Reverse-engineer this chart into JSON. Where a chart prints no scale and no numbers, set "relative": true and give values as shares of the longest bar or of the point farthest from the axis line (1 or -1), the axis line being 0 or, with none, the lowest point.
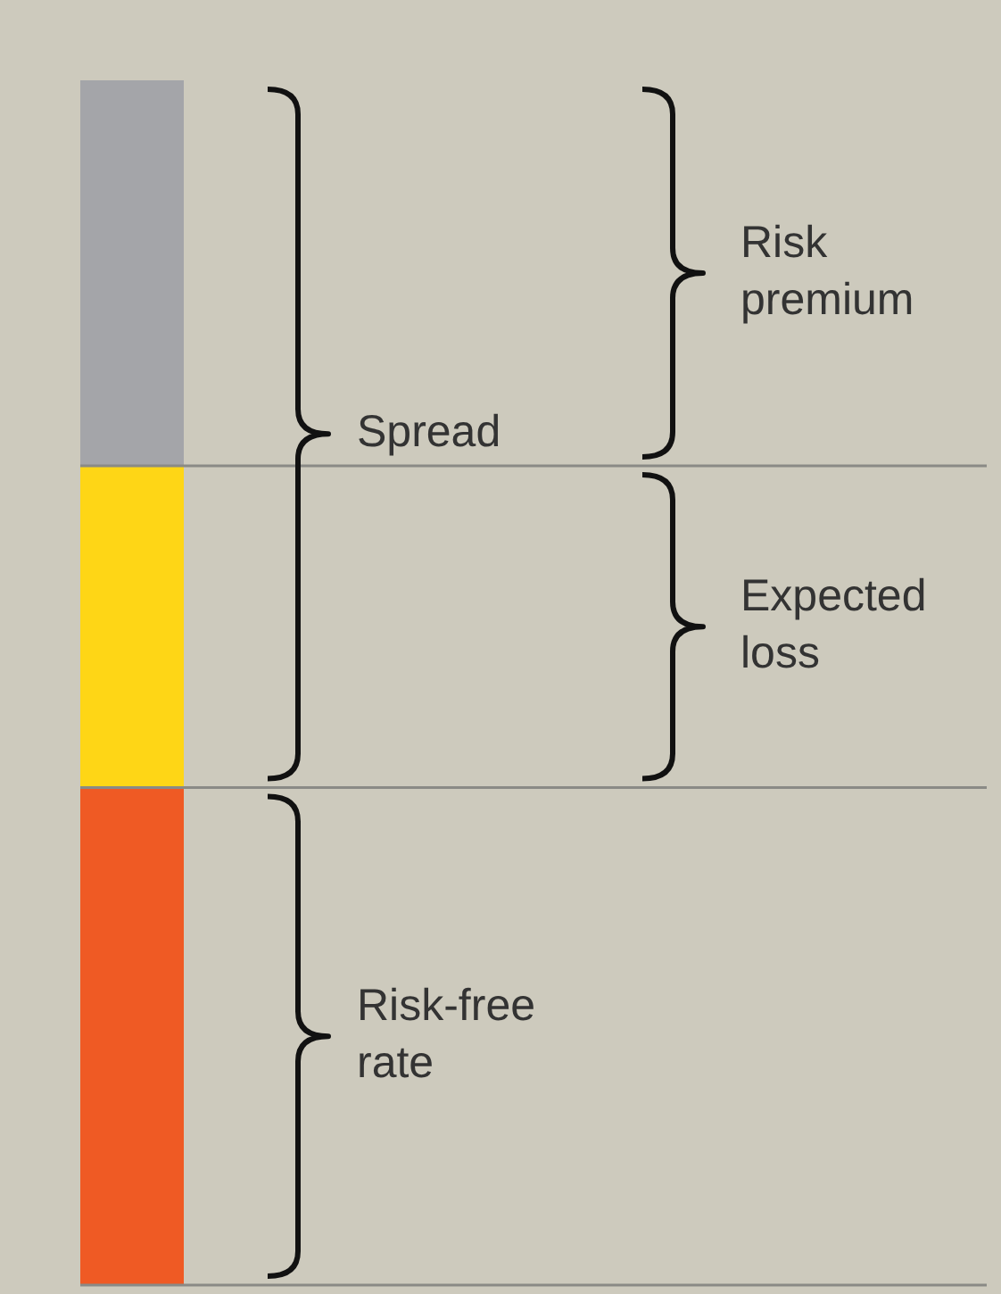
{
  "chart_data": {
    "type": "bar",
    "relative": true,
    "stacked": true,
    "categories": [
      null
    ],
    "annotations": [
      "Spread"
    ],
    "ref_lines": [
      {
        "axis": "y",
        "value": 0.413,
        "color": "#8a8a86"
      },
      {
        "axis": "y",
        "value": 0.68,
        "color": "#8a8a86"
      }
    ],
    "series": [
      {
        "name": "Risk-free rate",
        "color": "#ef5a24",
        "values": [
          0.413
        ]
      },
      {
        "name": "Expected loss",
        "color": "#fed616",
        "values": [
          0.267
        ]
      },
      {
        "name": "Risk premium",
        "color": "#a4a5a9",
        "values": [
          0.32
        ]
      }
    ]
  }
}
